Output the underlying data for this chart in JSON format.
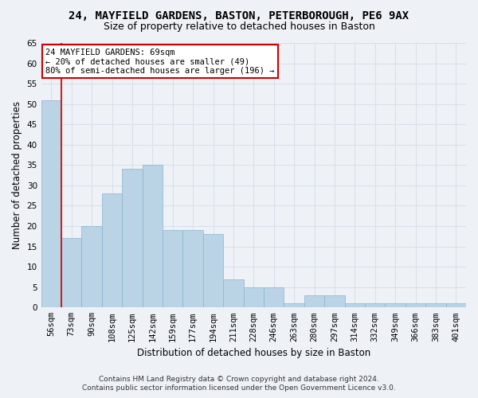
{
  "title1": "24, MAYFIELD GARDENS, BASTON, PETERBOROUGH, PE6 9AX",
  "title2": "Size of property relative to detached houses in Baston",
  "xlabel": "Distribution of detached houses by size in Baston",
  "ylabel": "Number of detached properties",
  "categories": [
    "56sqm",
    "73sqm",
    "90sqm",
    "108sqm",
    "125sqm",
    "142sqm",
    "159sqm",
    "177sqm",
    "194sqm",
    "211sqm",
    "228sqm",
    "246sqm",
    "263sqm",
    "280sqm",
    "297sqm",
    "314sqm",
    "332sqm",
    "349sqm",
    "366sqm",
    "383sqm",
    "401sqm"
  ],
  "bar_values": [
    51,
    17,
    20,
    28,
    34,
    35,
    19,
    19,
    18,
    7,
    5,
    5,
    1,
    3,
    3,
    1,
    1,
    1,
    1,
    1,
    1
  ],
  "highlight_index": 1,
  "bar_color": "#bad4e6",
  "bar_edge_color": "#8ab4cc",
  "highlight_bar_color": "#bad4e6",
  "highlight_edge_color": "#cc2222",
  "annotation_text": "24 MAYFIELD GARDENS: 69sqm\n← 20% of detached houses are smaller (49)\n80% of semi-detached houses are larger (196) →",
  "annotation_box_color": "#ffffff",
  "annotation_border_color": "#cc0000",
  "ylim": [
    0,
    65
  ],
  "yticks": [
    0,
    5,
    10,
    15,
    20,
    25,
    30,
    35,
    40,
    45,
    50,
    55,
    60,
    65
  ],
  "footer1": "Contains HM Land Registry data © Crown copyright and database right 2024.",
  "footer2": "Contains public sector information licensed under the Open Government Licence v3.0.",
  "background_color": "#eef2f7",
  "grid_color": "#d8e0ea",
  "title1_fontsize": 10,
  "title2_fontsize": 9,
  "xlabel_fontsize": 8.5,
  "ylabel_fontsize": 8.5,
  "tick_fontsize": 7.5,
  "footer_fontsize": 6.5
}
